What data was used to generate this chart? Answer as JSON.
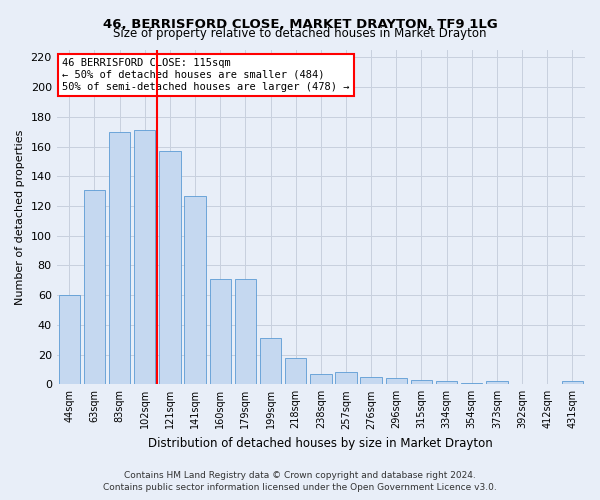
{
  "title": "46, BERRISFORD CLOSE, MARKET DRAYTON, TF9 1LG",
  "subtitle": "Size of property relative to detached houses in Market Drayton",
  "xlabel": "Distribution of detached houses by size in Market Drayton",
  "ylabel": "Number of detached properties",
  "footer_line1": "Contains HM Land Registry data © Crown copyright and database right 2024.",
  "footer_line2": "Contains public sector information licensed under the Open Government Licence v3.0.",
  "categories": [
    "44sqm",
    "63sqm",
    "83sqm",
    "102sqm",
    "121sqm",
    "141sqm",
    "160sqm",
    "179sqm",
    "199sqm",
    "218sqm",
    "238sqm",
    "257sqm",
    "276sqm",
    "296sqm",
    "315sqm",
    "334sqm",
    "354sqm",
    "373sqm",
    "392sqm",
    "412sqm",
    "431sqm"
  ],
  "values": [
    60,
    131,
    170,
    171,
    157,
    127,
    71,
    71,
    31,
    18,
    7,
    8,
    5,
    4,
    3,
    2,
    1,
    2,
    0,
    0,
    2
  ],
  "bar_color": "#c5d8f0",
  "bar_edge_color": "#5b9bd5",
  "grid_color": "#c8d0de",
  "background_color": "#e8eef8",
  "annotation_line1": "46 BERRISFORD CLOSE: 115sqm",
  "annotation_line2": "← 50% of detached houses are smaller (484)",
  "annotation_line3": "50% of semi-detached houses are larger (478) →",
  "annotation_box_color": "white",
  "annotation_box_edge": "red",
  "vline_x": 4.0,
  "vline_color": "red",
  "ylim": [
    0,
    225
  ],
  "yticks": [
    0,
    20,
    40,
    60,
    80,
    100,
    120,
    140,
    160,
    180,
    200,
    220
  ]
}
